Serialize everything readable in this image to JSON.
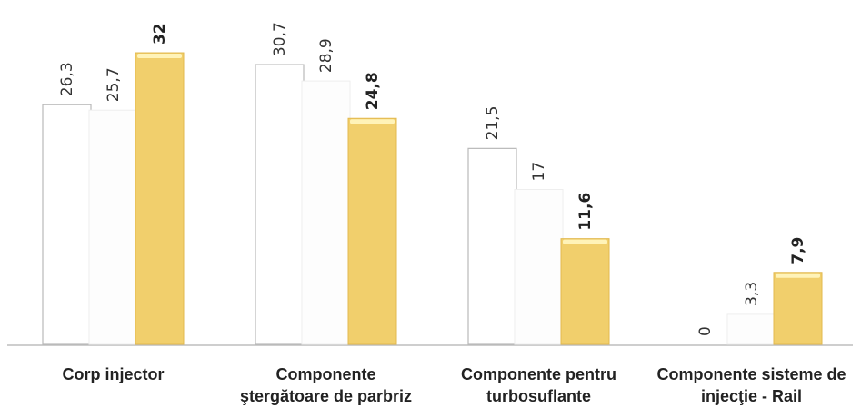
{
  "chart_data": {
    "type": "bar",
    "categories": [
      [
        "Corp injector"
      ],
      [
        "Componente",
        "ştergătoare de parbriz"
      ],
      [
        "Componente pentru",
        "turbosuflante"
      ],
      [
        "Componente sisteme de",
        "injecţie - Rail"
      ]
    ],
    "series": [
      {
        "values": [
          26.3,
          30.7,
          21.5,
          0
        ],
        "labels": [
          "26,3",
          "30,7",
          "21,5",
          "0"
        ],
        "color": "#ffffff",
        "stroke": "#b9b9b9"
      },
      {
        "values": [
          25.7,
          28.9,
          17,
          3.3
        ],
        "labels": [
          "25,7",
          "28,9",
          "17",
          "3,3"
        ],
        "color": "#fdfdfd",
        "stroke": "#eeeeee"
      },
      {
        "values": [
          32,
          24.8,
          11.6,
          7.9
        ],
        "labels": [
          "32",
          "24,8",
          "11,6",
          "7,9"
        ],
        "color": "#f1cf6c",
        "stroke": "#e2b94e"
      }
    ],
    "ylim": [
      0,
      33
    ],
    "grid": false,
    "legend": "none",
    "colors": {
      "axis": "#bdbdbd",
      "highlight": "#fff3b8"
    }
  }
}
